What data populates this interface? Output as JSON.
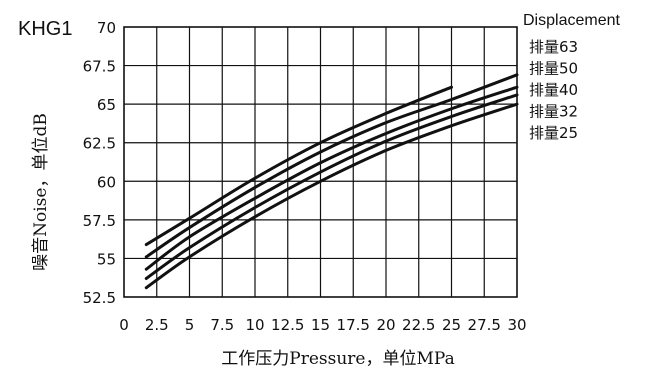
{
  "chart_data": {
    "type": "line",
    "title": "KHG1",
    "xlabel": "工作压力Pressure，单位MPa",
    "ylabel": "噪音Noise，单位dB",
    "xlim": [
      0,
      30
    ],
    "ylim": [
      52.5,
      70
    ],
    "x_ticks": [
      "0",
      "2.5",
      "5",
      "7.5",
      "10",
      "12.5",
      "15",
      "17.5",
      "20",
      "22.5",
      "25",
      "27.5",
      "30"
    ],
    "y_ticks": [
      "52.5",
      "55",
      "57.5",
      "60",
      "62.5",
      "65",
      "67.5",
      "70"
    ],
    "grid": true,
    "legend_title": "Displacement",
    "legend_position": "right",
    "series": [
      {
        "name": "排量63",
        "x": [
          1.7,
          5,
          10,
          15,
          20,
          25
        ],
        "y": [
          55.9,
          57.6,
          60.2,
          62.5,
          64.4,
          66.1
        ]
      },
      {
        "name": "排量50",
        "x": [
          1.7,
          5,
          10,
          15,
          20,
          25,
          30
        ],
        "y": [
          55.1,
          57.0,
          59.6,
          61.9,
          63.8,
          65.3,
          66.9
        ]
      },
      {
        "name": "排量40",
        "x": [
          1.7,
          5,
          10,
          15,
          20,
          25,
          30
        ],
        "y": [
          54.3,
          56.4,
          58.9,
          61.2,
          63.1,
          64.7,
          66.1
        ]
      },
      {
        "name": "排量32",
        "x": [
          1.7,
          5,
          10,
          15,
          20,
          25,
          30
        ],
        "y": [
          53.7,
          55.7,
          58.3,
          60.6,
          62.6,
          64.2,
          65.6
        ]
      },
      {
        "name": "排量25",
        "x": [
          1.7,
          5,
          10,
          15,
          20,
          25,
          30
        ],
        "y": [
          53.1,
          55.1,
          57.7,
          60.0,
          62.0,
          63.6,
          65.0
        ]
      }
    ]
  }
}
